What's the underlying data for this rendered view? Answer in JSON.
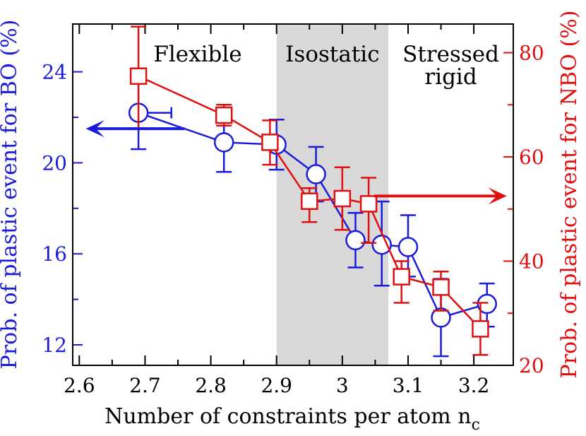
{
  "chart_data": {
    "type": "scatter",
    "xlabel": "Number of constraints per atom n",
    "xlabel_subscript": "c",
    "ylabel_left": "Prob. of plastic event for BO (%)",
    "ylabel_right": "Prob. of plastic event for NBO (%)",
    "xlim": [
      2.59,
      3.26
    ],
    "ylim_left": [
      11.1,
      26.1
    ],
    "ylim_right": [
      20,
      85.5
    ],
    "x_ticks": [
      2.6,
      2.7,
      2.8,
      2.9,
      3.0,
      3.1,
      3.2
    ],
    "x_tick_labels": [
      "2.6",
      "2.7",
      "2.8",
      "2.9",
      "3",
      "3.1",
      "3.2"
    ],
    "y_left_ticks": [
      12,
      16,
      20,
      24
    ],
    "y_left_tick_labels": [
      "12",
      "16",
      "20",
      "24"
    ],
    "y_right_ticks": [
      20,
      40,
      60,
      80
    ],
    "y_right_tick_labels": [
      "20",
      "40",
      "60",
      "80"
    ],
    "regions": [
      {
        "name": "Flexible",
        "lines": [
          "Flexible"
        ],
        "x_range": [
          2.59,
          2.9
        ],
        "shaded": false
      },
      {
        "name": "Isostatic",
        "lines": [
          "Isostatic"
        ],
        "x_range": [
          2.9,
          3.07
        ],
        "shaded": true
      },
      {
        "name": "Stressed rigid",
        "lines": [
          "Stressed",
          "rigid"
        ],
        "x_range": [
          3.07,
          3.26
        ],
        "shaded": false
      }
    ],
    "series": [
      {
        "name": "BO",
        "axis": "left",
        "color": "#1b1bdb",
        "marker": "circle",
        "x": [
          2.69,
          2.82,
          2.9,
          2.96,
          3.02,
          3.06,
          3.1,
          3.15,
          3.22
        ],
        "y": [
          22.2,
          20.9,
          20.8,
          19.5,
          16.6,
          16.4,
          16.3,
          13.2,
          13.8
        ],
        "err_low": [
          20.6,
          19.6,
          19.7,
          18.3,
          15.4,
          14.6,
          15.0,
          11.5,
          12.8
        ],
        "err_high": [
          23.8,
          22.2,
          21.9,
          20.7,
          17.8,
          18.3,
          17.7,
          14.9,
          14.7
        ],
        "x_err": [
          [
            2.69,
            2.74
          ]
        ]
      },
      {
        "name": "NBO",
        "axis": "right",
        "color": "#e01010",
        "marker": "square",
        "x": [
          2.69,
          2.82,
          2.89,
          2.95,
          3.0,
          3.04,
          3.09,
          3.15,
          3.21
        ],
        "y": [
          75.5,
          68.0,
          62.8,
          51.5,
          52.0,
          51.0,
          37.0,
          35.0,
          27.0
        ],
        "err_low": [
          65.5,
          66.0,
          58.5,
          47.5,
          46.0,
          43.5,
          32.0,
          30.5,
          22.0
        ],
        "err_high": [
          85.0,
          70.0,
          67.0,
          54.0,
          58.0,
          56.0,
          40.0,
          38.0,
          32.0
        ]
      }
    ],
    "annotations": [
      {
        "type": "arrow",
        "direction": "left",
        "color": "#1b1bdb",
        "meaning": "BO uses left axis"
      },
      {
        "type": "arrow",
        "direction": "right",
        "color": "#e01010",
        "meaning": "NBO uses right axis"
      }
    ]
  }
}
